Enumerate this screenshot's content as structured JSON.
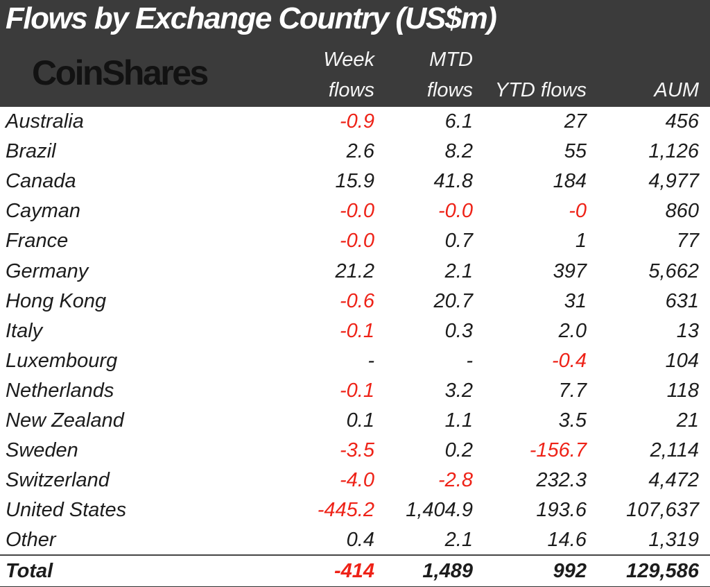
{
  "header": {
    "title": "Flows by Exchange Country (US$m)",
    "logo": "CoinShares",
    "columns": [
      {
        "id": "week",
        "lines": [
          "Week",
          "flows"
        ]
      },
      {
        "id": "mtd",
        "lines": [
          "MTD",
          "flows"
        ]
      },
      {
        "id": "ytd",
        "lines": [
          "YTD flows"
        ]
      },
      {
        "id": "aum",
        "lines": [
          "AUM"
        ]
      }
    ]
  },
  "colors": {
    "header_bg": "#3b3b3b",
    "header_text": "#ffffff",
    "body_text": "#1c1c1c",
    "negative": "#ee2217"
  },
  "chart_data": {
    "type": "table",
    "title": "Flows by Exchange Country (US$m)",
    "columns": [
      "Week flows",
      "MTD flows",
      "YTD flows",
      "AUM"
    ],
    "rows": [
      {
        "country": "Australia",
        "values": [
          "-0.9",
          "6.1",
          "27",
          "456"
        ]
      },
      {
        "country": "Brazil",
        "values": [
          "2.6",
          "8.2",
          "55",
          "1,126"
        ]
      },
      {
        "country": "Canada",
        "values": [
          "15.9",
          "41.8",
          "184",
          "4,977"
        ]
      },
      {
        "country": "Cayman",
        "values": [
          "-0.0",
          "-0.0",
          "-0",
          "860"
        ]
      },
      {
        "country": "France",
        "values": [
          "-0.0",
          "0.7",
          "1",
          "77"
        ]
      },
      {
        "country": "Germany",
        "values": [
          "21.2",
          "2.1",
          "397",
          "5,662"
        ]
      },
      {
        "country": "Hong Kong",
        "values": [
          "-0.6",
          "20.7",
          "31",
          "631"
        ]
      },
      {
        "country": "Italy",
        "values": [
          "-0.1",
          "0.3",
          "2.0",
          "13"
        ]
      },
      {
        "country": "Luxembourg",
        "values": [
          "-",
          "-",
          "-0.4",
          "104"
        ]
      },
      {
        "country": "Netherlands",
        "values": [
          "-0.1",
          "3.2",
          "7.7",
          "118"
        ]
      },
      {
        "country": "New Zealand",
        "values": [
          "0.1",
          "1.1",
          "3.5",
          "21"
        ]
      },
      {
        "country": "Sweden",
        "values": [
          "-3.5",
          "0.2",
          "-156.7",
          "2,114"
        ]
      },
      {
        "country": "Switzerland",
        "values": [
          "-4.0",
          "-2.8",
          "232.3",
          "4,472"
        ]
      },
      {
        "country": "United States",
        "values": [
          "-445.2",
          "1,404.9",
          "193.6",
          "107,637"
        ]
      },
      {
        "country": "Other",
        "values": [
          "0.4",
          "2.1",
          "14.6",
          "1,319"
        ]
      }
    ],
    "total": {
      "label": "Total",
      "values": [
        "-414",
        "1,489",
        "992",
        "129,586"
      ]
    }
  }
}
